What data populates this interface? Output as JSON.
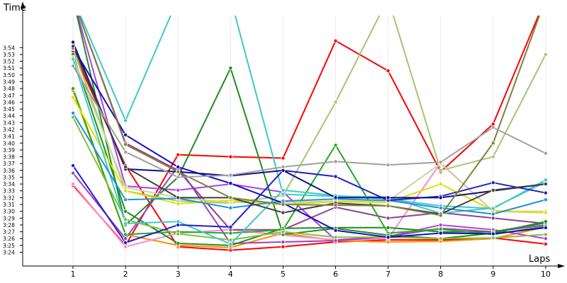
{
  "chart_data": {
    "type": "line",
    "title": "",
    "ylabel": "Time",
    "xlabel": "Laps",
    "x": [
      1,
      2,
      3,
      4,
      5,
      6,
      7,
      8,
      9,
      10
    ],
    "ylim": [
      "3:23",
      "3:55"
    ],
    "yticks": [
      "3:24",
      "3:25",
      "3:26",
      "3:27",
      "3:28",
      "3:29",
      "3:30",
      "3:31",
      "3:32",
      "3:33",
      "3:34",
      "3:35",
      "3:36",
      "3:37",
      "3:38",
      "3:39",
      "3:40",
      "3:41",
      "3:42",
      "3:43",
      "3:44",
      "3:45",
      "3:46",
      "3:47",
      "3:48",
      "3:49",
      "3:50",
      "3:51",
      "3:52",
      "3:53",
      "3:54"
    ],
    "grid": true,
    "series": [
      {
        "color": "#ff0000",
        "values": [
          "3:33.8",
          "3:25.0",
          "3:38.3",
          "3:38.0",
          "3:37.8",
          "3:55.0",
          "3:50.6",
          "3:35.8",
          "3:42.8",
          ">3:55"
        ]
      },
      {
        "color": "#ff0000",
        "values": [
          "3:53.5",
          "3:36.7",
          "3:24.8",
          "3:24.3",
          "3:24.8",
          "3:25.5",
          "3:25.8",
          "3:25.8",
          "3:26.1",
          "3:25.2"
        ]
      },
      {
        "color": "#ff8c00",
        "values": [
          "3:47.7",
          "3:26.6",
          "3:25.0",
          "3:24.7",
          "3:26.8",
          "3:25.7",
          "3:25.5",
          "3:25.6",
          "3:26.0",
          "3:27.7"
        ]
      },
      {
        "color": "#ff88cc",
        "values": [
          "3:34.0",
          "3:24.8",
          "3:26.8",
          "3:27.3",
          "3:26.5",
          "3:25.8",
          "3:26.0",
          "3:37.1",
          "3:30.0",
          "3:29.8"
        ]
      },
      {
        "color": "#b040e0",
        "values": [
          ">3:55",
          "3:33.7",
          "3:33.1",
          "3:34.0",
          "3:32.8",
          "3:25.8",
          "3:26.3",
          "3:28.0",
          "3:27.3",
          "3:26.0"
        ]
      },
      {
        "color": "#a040c0",
        "values": [
          "3:35.6",
          "3:26.0",
          "3:36.6",
          "3:25.3",
          "3:25.5",
          "3:25.7",
          "3:26.3",
          "3:27.5",
          "3:27.0",
          "3:28.0"
        ]
      },
      {
        "color": "#904090",
        "values": [
          ">3:55",
          "3:40.0",
          "3:36.0",
          "3:27.3",
          "3:27.3",
          "3:30.6",
          "3:29.0",
          "3:29.8",
          "3:29.0",
          "3:28.2"
        ]
      },
      {
        "color": "#228b22",
        "values": [
          "3:53.0",
          "3:30.0",
          "3:25.3",
          "3:25.0",
          "3:27.5",
          "3:27.6",
          "3:27.6",
          "3:27.0",
          "3:27.0",
          "3:28.3"
        ]
      },
      {
        "color": "#22aa22",
        "values": [
          "3:48.0",
          "3:26.6",
          "3:27.0",
          "3:26.8",
          "3:27.3",
          "3:39.7",
          "3:26.8",
          "3:27.4",
          "3:26.6",
          "3:27.8"
        ]
      },
      {
        "color": "#228b22",
        "values": [
          ">3:55",
          "3:28.0",
          "3:35.0",
          "3:51.0",
          "3:26.6",
          "3:27.5",
          "3:26.5",
          "3:26.0",
          "3:26.8",
          "3:28.5"
        ]
      },
      {
        "color": "#80c040",
        "values": [
          "3:43.8",
          "3:28.8",
          "3:26.7",
          "3:25.8",
          "3:27.0",
          "3:26.2",
          "3:26.2",
          "3:26.0",
          "3:26.1",
          "3:26.6"
        ]
      },
      {
        "color": "#a0c870",
        "values": [
          "3:53.8",
          "3:33.0",
          "3:31.5",
          "3:31.2",
          "3:32.3",
          "3:46.0",
          ">3:55",
          "3:36.0",
          "3:38.0",
          "3:53.0"
        ]
      },
      {
        "color": "#c8d8a0",
        "values": [
          "3:52.6",
          "3:33.5",
          "3:32.0",
          "3:31.3",
          "3:31.3",
          "3:31.5",
          "3:31.5",
          "3:37.0",
          "3:30.0",
          "3:30.0"
        ]
      },
      {
        "color": "#e0e000",
        "values": [
          "3:46.7",
          "3:33.0",
          "3:31.1",
          "3:31.6",
          "3:31.0",
          "3:31.4",
          "3:31.3",
          "3:34.0",
          "3:30.1",
          "3:29.8"
        ]
      },
      {
        "color": "#40c8c8",
        "values": [
          ">3:55",
          "3:43.3",
          ">3:55",
          ">3:55",
          "3:32.5",
          "3:32.2",
          "3:32.1",
          "3:29.7",
          "3:30.5",
          "3:34.3"
        ]
      },
      {
        "color": "#40c8c8",
        "values": [
          "3:52.3",
          "3:28.2",
          "3:28.5",
          "3:25.2",
          "3:33.1",
          "3:32.3",
          "3:31.8",
          "3:30.8",
          "3:30.4",
          "3:34.6"
        ]
      },
      {
        "color": "#2090e0",
        "values": [
          "3:44.4",
          "3:31.7",
          "3:31.9",
          "3:30.5",
          "3:31.5",
          "3:31.8",
          "3:31.6",
          "3:30.5",
          "3:29.6",
          "3:31.7"
        ]
      },
      {
        "color": "#1010c0",
        "values": [
          "3:54.0",
          "3:41.2",
          "3:36.5",
          "3:34.1",
          "3:31.2",
          "3:27.2",
          "3:26.2",
          "3:26.8",
          "3:26.7",
          "3:27.6"
        ]
      },
      {
        "color": "#2020d0",
        "values": [
          "3:36.7",
          "3:25.4",
          "3:28.0",
          "3:27.7",
          "3:36.0",
          "3:35.1",
          "3:31.6",
          "3:32.2",
          "3:34.2",
          "3:32.7"
        ]
      },
      {
        "color": "#101080",
        "values": [
          "3:54.8",
          "3:36.2",
          "3:35.8",
          "3:35.2",
          "3:36.0",
          "3:32.0",
          "3:32.0",
          "3:32.0",
          "3:33.0",
          "3:34.0"
        ]
      },
      {
        "color": "#404040",
        "values": [
          "3:54.2",
          "3:36.5",
          "3:32.0",
          "3:32.0",
          "3:29.8",
          "3:31.2",
          "3:30.8",
          "3:29.6",
          "3:33.1",
          "3:34.0"
        ]
      },
      {
        "color": "#808040",
        "values": [
          ">3:55",
          "3:39.8",
          "3:35.8",
          "3:32.0",
          "3:31.0",
          "3:30.9",
          "3:30.8",
          "3:29.4",
          "3:40.0",
          ">3:55"
        ]
      },
      {
        "color": "#a0a0a0",
        "values": [
          "3:51.3",
          "3:38.7",
          "3:35.0",
          "3:35.3",
          "3:36.5",
          "3:37.3",
          "3:36.8",
          "3:37.2",
          "3:42.3",
          "3:38.5"
        ]
      }
    ]
  }
}
